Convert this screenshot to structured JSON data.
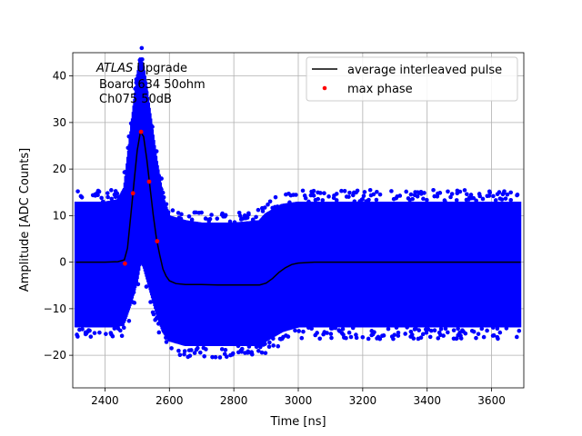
{
  "chart_data": {
    "type": "scatter",
    "xlabel": "Time [ns]",
    "ylabel": "Amplitude [ADC Counts]",
    "xlim": [
      2300,
      3700
    ],
    "ylim": [
      -27,
      45
    ],
    "xticks": [
      2400,
      2600,
      2800,
      3000,
      3200,
      3400,
      3600
    ],
    "yticks": [
      -20,
      -10,
      0,
      10,
      20,
      30,
      40
    ],
    "grid": true,
    "legend_placement": "top-right",
    "annotation": {
      "atlas": "ATLAS",
      "line1_rest": " Upgrade",
      "line2": "Board 634 50ohm",
      "line3": "Ch075 50dB"
    },
    "colors": {
      "samples": "#0000ff",
      "average": "#000000",
      "max_phase": "#ff0000",
      "grid": "#b0b0b0"
    },
    "series": [
      {
        "name": "samples",
        "label": "",
        "style": "dots",
        "note_envelope": "samples band",
        "envelope_x": [
          2310,
          2400,
          2440,
          2460,
          2480,
          2500,
          2510,
          2520,
          2540,
          2560,
          2580,
          2600,
          2650,
          2700,
          2800,
          2880,
          2900,
          2950,
          3000,
          3100,
          3300,
          3500,
          3690
        ],
        "envelope_upper": [
          13,
          13,
          13.5,
          16,
          28,
          40,
          44,
          42,
          32,
          22,
          14,
          10,
          9,
          8.5,
          8.5,
          9,
          10.5,
          12.5,
          13,
          13,
          13,
          13,
          13
        ],
        "envelope_lower": [
          -14,
          -14,
          -14,
          -13,
          -9,
          -4,
          0,
          -1,
          -6,
          -11,
          -15,
          -17,
          -18,
          -18,
          -18,
          -18,
          -17,
          -15,
          -14,
          -14,
          -14,
          -14,
          -14
        ]
      },
      {
        "name": "average interleaved pulse",
        "style": "line",
        "x": [
          2310,
          2350,
          2400,
          2440,
          2460,
          2470,
          2480,
          2490,
          2500,
          2510,
          2520,
          2530,
          2540,
          2550,
          2560,
          2570,
          2580,
          2590,
          2600,
          2620,
          2650,
          2700,
          2750,
          2800,
          2850,
          2880,
          2900,
          2920,
          2940,
          2960,
          2980,
          3000,
          3050,
          3100,
          3200,
          3300,
          3400,
          3500,
          3600,
          3690
        ],
        "y": [
          0,
          0,
          0,
          0.1,
          0.5,
          3,
          10,
          17,
          24,
          28,
          27,
          22,
          16,
          10,
          5,
          1.5,
          -1.5,
          -3,
          -4,
          -4.6,
          -4.8,
          -4.8,
          -4.9,
          -4.9,
          -4.9,
          -4.9,
          -4.5,
          -3.5,
          -2.2,
          -1.2,
          -0.5,
          -0.2,
          0,
          0,
          0,
          0,
          0,
          0,
          0,
          0
        ]
      },
      {
        "name": "max phase",
        "style": "markers",
        "x": [
          2462,
          2487,
          2512,
          2537,
          2562
        ],
        "y": [
          -0.3,
          14.8,
          28,
          17.3,
          4.5
        ]
      }
    ]
  }
}
